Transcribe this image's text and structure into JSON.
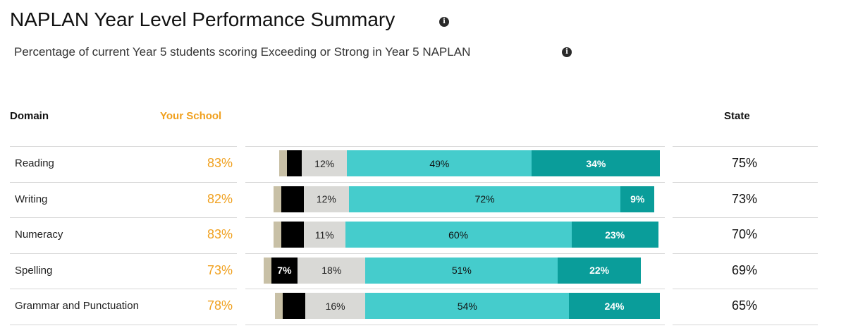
{
  "header": {
    "title": "NAPLAN Year Level Performance Summary",
    "subtitle": "Percentage of current Year 5 students scoring Exceeding or Strong in Year 5 NAPLAN",
    "info_icon": "info-icon"
  },
  "table": {
    "col_domain": "Domain",
    "col_school": "Your School",
    "col_state": "State"
  },
  "colors": {
    "school_accent": "#f0a01e",
    "needs_additional_support": "#c8c0a6",
    "developing_low": "#000000",
    "developing": "#d9d9d6",
    "strong": "#45cccc",
    "exceeding": "#0a9d9a"
  },
  "chart_data": {
    "type": "bar",
    "orientation": "horizontal-stacked",
    "categories": [
      "Reading",
      "Writing",
      "Numeracy",
      "Spelling",
      "Grammar and Punctuation"
    ],
    "your_school": [
      "83%",
      "82%",
      "83%",
      "73%",
      "78%"
    ],
    "state": [
      "75%",
      "73%",
      "70%",
      "69%",
      "65%"
    ],
    "series": [
      {
        "key": "tan",
        "values": [
          2,
          2,
          2,
          2,
          2
        ],
        "labels": [
          "",
          "",
          "",
          "",
          ""
        ]
      },
      {
        "key": "black",
        "values": [
          4,
          6,
          6,
          7,
          6
        ],
        "labels": [
          "",
          "",
          "",
          "7%",
          ""
        ]
      },
      {
        "key": "grey",
        "values": [
          12,
          12,
          11,
          18,
          16
        ],
        "labels": [
          "12%",
          "12%",
          "11%",
          "18%",
          "16%"
        ]
      },
      {
        "key": "light",
        "values": [
          49,
          72,
          60,
          51,
          54
        ],
        "labels": [
          "49%",
          "72%",
          "60%",
          "51%",
          "54%"
        ]
      },
      {
        "key": "dark",
        "values": [
          34,
          9,
          23,
          22,
          24
        ],
        "labels": [
          "34%",
          "9%",
          "23%",
          "22%",
          "24%"
        ]
      }
    ]
  }
}
